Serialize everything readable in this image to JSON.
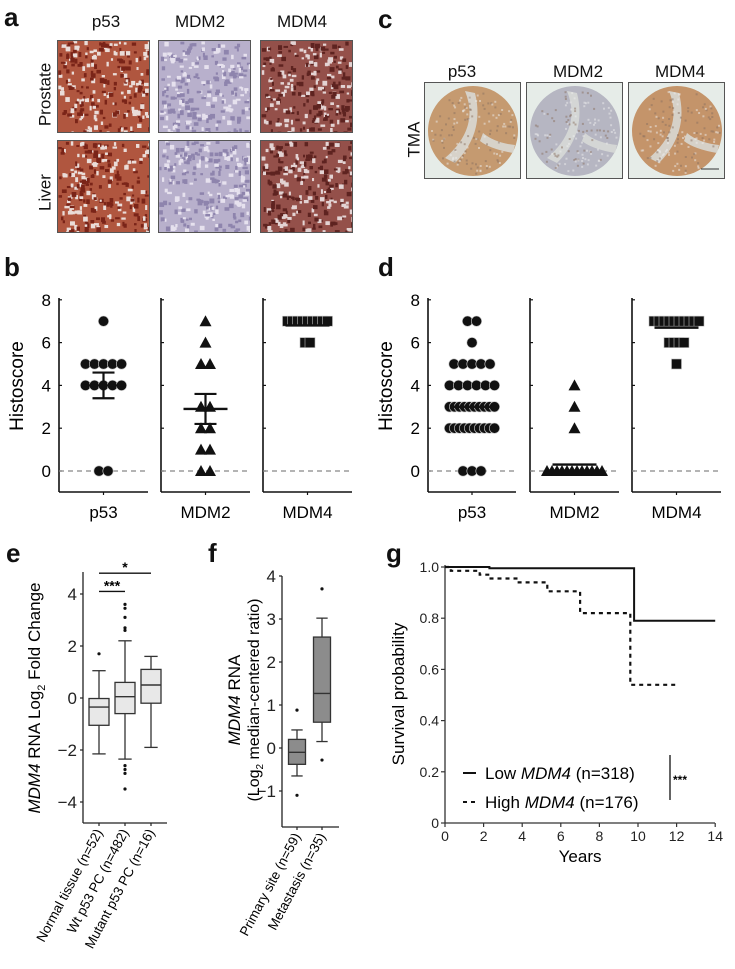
{
  "panel_a": {
    "letter": "a",
    "columns": [
      "p53",
      "MDM2",
      "MDM4"
    ],
    "rows": [
      "Prostate",
      "Liver"
    ],
    "tile_colors": {
      "p53": {
        "base": "#b0563f",
        "speck": "#7a2418",
        "light": "#eadcd8"
      },
      "MDM2": {
        "base": "#b8b0cc",
        "speck": "#8e84ad",
        "light": "#e6e1ee"
      },
      "MDM4": {
        "base": "#94504a",
        "speck": "#5e2320",
        "light": "#e3d3d3"
      }
    }
  },
  "panel_c": {
    "letter": "c",
    "columns": [
      "p53",
      "MDM2",
      "MDM4"
    ],
    "row_label": "TMA",
    "core_colors": {
      "p53": "#c59a70",
      "MDM2": "#b6b6c2",
      "MDM4": "#c4946a"
    },
    "background": "#e6ece8"
  },
  "panel_b": {
    "letter": "b"
  },
  "panel_d": {
    "letter": "d"
  },
  "panel_e": {
    "letter": "e"
  },
  "panel_f": {
    "letter": "f"
  },
  "panel_g": {
    "letter": "g"
  },
  "chart_data": [
    {
      "id": "b",
      "type": "scatter",
      "title": "",
      "ylabel": "Histoscore",
      "xlabel": "",
      "categories": [
        "p53",
        "MDM2",
        "MDM4"
      ],
      "ylim": [
        -1,
        8
      ],
      "yticks": [
        0,
        2,
        4,
        6,
        8
      ],
      "reference_line": {
        "y": 0,
        "style": "dashed",
        "color": "#888888"
      },
      "series": [
        {
          "name": "p53",
          "marker": "circle",
          "values": [
            7,
            5,
            5,
            5,
            5,
            5,
            4,
            4,
            4,
            4,
            4,
            0,
            0
          ],
          "mean": 4.0,
          "error_upper": 4.6,
          "error_lower": 3.4
        },
        {
          "name": "MDM2",
          "marker": "triangle",
          "values": [
            7,
            6,
            5,
            5,
            3,
            3,
            2,
            2,
            1,
            1,
            0,
            0
          ],
          "mean": 2.9,
          "error_upper": 3.6,
          "error_lower": 2.2
        },
        {
          "name": "MDM4",
          "marker": "square",
          "values": [
            7,
            7,
            7,
            7,
            7,
            7,
            7,
            7,
            7,
            6,
            6
          ],
          "mean": 6.8
        }
      ]
    },
    {
      "id": "d",
      "type": "scatter",
      "title": "",
      "ylabel": "Histoscore",
      "xlabel": "",
      "categories": [
        "p53",
        "MDM2",
        "MDM4"
      ],
      "ylim": [
        -1,
        8
      ],
      "yticks": [
        0,
        2,
        4,
        6,
        8
      ],
      "reference_line": {
        "y": 0,
        "style": "dashed",
        "color": "#888888"
      },
      "series": [
        {
          "name": "p53",
          "marker": "circle",
          "values": [
            7,
            7,
            6,
            5,
            5,
            5,
            5,
            5,
            4,
            4,
            4,
            4,
            4,
            4,
            3,
            3,
            3,
            3,
            3,
            3,
            3,
            3,
            3,
            3,
            2,
            2,
            2,
            2,
            2,
            2,
            2,
            2,
            2,
            2,
            0,
            0,
            0
          ],
          "mean": 3.0
        },
        {
          "name": "MDM2",
          "marker": "triangle",
          "values": [
            4,
            3,
            2,
            0,
            0,
            0,
            0,
            0,
            0,
            0,
            0,
            0,
            0,
            0,
            0
          ],
          "mean": 0.3
        },
        {
          "name": "MDM4",
          "marker": "square",
          "values": [
            7,
            7,
            7,
            7,
            7,
            7,
            7,
            7,
            7,
            7,
            6,
            6,
            6,
            6,
            5
          ],
          "mean": 6.7
        }
      ]
    },
    {
      "id": "e",
      "type": "box",
      "title": "",
      "ylabel_italic": "MDM4",
      "ylabel_rest": " RNA Log",
      "ylabel_sub": "2",
      "ylabel_tail": " Fold Change",
      "categories": [
        "Normal tissue (n=52)",
        "Wt p53 PC (n=482)",
        "Mutant p53 PC (n=16)"
      ],
      "ylim": [
        -4.8,
        4.9
      ],
      "yticks": [
        -4,
        -2,
        0,
        2,
        4
      ],
      "ytick_labels": [
        "−4",
        "−2",
        "0",
        "2",
        "4"
      ],
      "box_color": "#e8e8e8",
      "boxes": [
        {
          "min": -2.15,
          "q1": -1.05,
          "median": -0.35,
          "q3": -0.02,
          "max": 1.05,
          "outliers": [
            1.7
          ]
        },
        {
          "min": -2.35,
          "q1": -0.6,
          "median": 0.05,
          "q3": 0.6,
          "max": 2.2,
          "outliers": [
            3.6,
            3.45,
            3.1,
            2.7,
            2.6,
            -2.6,
            -2.75,
            -2.9,
            -3.5
          ]
        },
        {
          "min": -1.9,
          "q1": -0.2,
          "median": 0.5,
          "q3": 1.1,
          "max": 1.6,
          "outliers": []
        }
      ],
      "significance": [
        {
          "from": 0,
          "to": 1,
          "label": "***",
          "y": 4.1
        },
        {
          "from": 0,
          "to": 2,
          "label": "*",
          "y": 4.8
        }
      ]
    },
    {
      "id": "f",
      "type": "box",
      "title": "",
      "ylabel_line1_italic": "MDM4",
      "ylabel_line1_rest": " RNA",
      "ylabel_line2_pre": "(Log",
      "ylabel_line2_sub": "2",
      "ylabel_line2_post": " median-centered ratio)",
      "categories": [
        "Primary site (n=59)",
        "Metastasis (n=35)"
      ],
      "ylim": [
        -1.8,
        4.0
      ],
      "yticks": [
        -1,
        0,
        1,
        2,
        3,
        4
      ],
      "ytick_labels": [
        "−1",
        "0",
        "1",
        "2",
        "3",
        "4"
      ],
      "box_color": "#8c8c8c",
      "boxes": [
        {
          "min": -0.65,
          "q1": -0.38,
          "median": -0.1,
          "q3": 0.2,
          "max": 0.42,
          "outliers": [
            0.88,
            -1.1
          ]
        },
        {
          "min": 0.15,
          "q1": 0.6,
          "median": 1.27,
          "q3": 2.58,
          "max": 3.02,
          "outliers": [
            3.7,
            -0.28
          ]
        }
      ]
    },
    {
      "id": "g",
      "type": "line",
      "title": "",
      "xlabel": "Years",
      "ylabel": "Survival probability",
      "xlim": [
        0,
        14
      ],
      "ylim": [
        0,
        1.0
      ],
      "xticks": [
        0,
        2,
        4,
        6,
        8,
        10,
        12,
        14
      ],
      "yticks": [
        0,
        0.2,
        0.4,
        0.6,
        0.8,
        1.0
      ],
      "ytick_labels": [
        "0",
        "0.2",
        "0.4",
        "0.6",
        "0.8",
        "1.0"
      ],
      "series": [
        {
          "name": "Low MDM4 (n=318)",
          "legend_pre": "Low ",
          "legend_italic": "MDM4",
          "legend_post": " (n=318)",
          "style": "solid",
          "x": [
            0,
            2.3,
            2.3,
            9.8,
            9.8,
            14
          ],
          "y": [
            1.0,
            1.0,
            0.995,
            0.995,
            0.79,
            0.79
          ]
        },
        {
          "name": "High MDM4 (n=176)",
          "legend_pre": "High ",
          "legend_italic": "MDM4",
          "legend_post": " (n=176)",
          "style": "dashed",
          "x": [
            0,
            0.3,
            0.3,
            1.8,
            1.8,
            2.3,
            2.3,
            3.7,
            3.7,
            5.3,
            5.3,
            7.0,
            7.0,
            9.6,
            9.6,
            12.0
          ],
          "y": [
            1.0,
            1.0,
            0.985,
            0.985,
            0.97,
            0.97,
            0.955,
            0.955,
            0.94,
            0.94,
            0.905,
            0.905,
            0.82,
            0.82,
            0.54,
            0.54
          ]
        }
      ],
      "significance": "***",
      "legend_position": "lower center"
    }
  ]
}
